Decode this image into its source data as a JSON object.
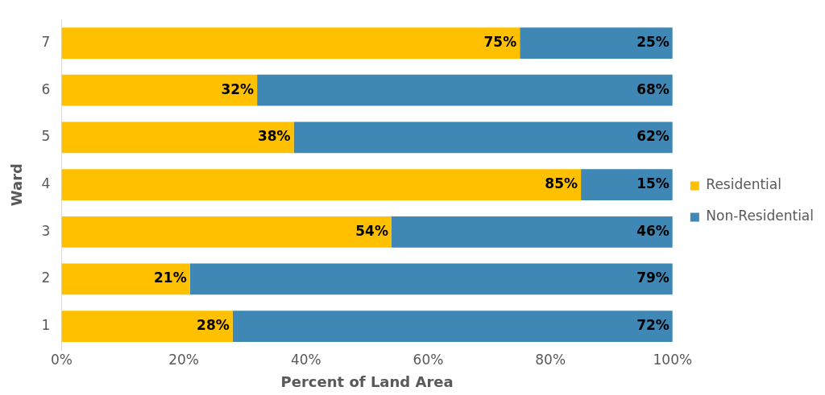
{
  "chart_data": {
    "type": "bar",
    "orientation": "horizontal",
    "stacked": true,
    "xlabel": "Percent of Land Area",
    "ylabel": "Ward",
    "categories": [
      "7",
      "6",
      "5",
      "4",
      "3",
      "2",
      "1"
    ],
    "series": [
      {
        "name": "Residential",
        "color": "#ffc000",
        "values": [
          75,
          32,
          38,
          85,
          54,
          21,
          28
        ],
        "value_labels": [
          "75%",
          "32%",
          "38%",
          "85%",
          "54%",
          "21%",
          "28%"
        ]
      },
      {
        "name": "Non-Residential",
        "color": "#3f88b6",
        "values": [
          25,
          68,
          62,
          15,
          46,
          79,
          72
        ],
        "value_labels": [
          "25%",
          "68%",
          "62%",
          "15%",
          "46%",
          "79%",
          "72%"
        ]
      }
    ],
    "xlim": [
      0,
      100
    ],
    "xticks": [
      {
        "value": 0,
        "label": "0%"
      },
      {
        "value": 20,
        "label": "20%"
      },
      {
        "value": 40,
        "label": "40%"
      },
      {
        "value": 60,
        "label": "60%"
      },
      {
        "value": 80,
        "label": "80%"
      },
      {
        "value": 100,
        "label": "100%"
      }
    ],
    "grid": false,
    "legend": "right"
  }
}
